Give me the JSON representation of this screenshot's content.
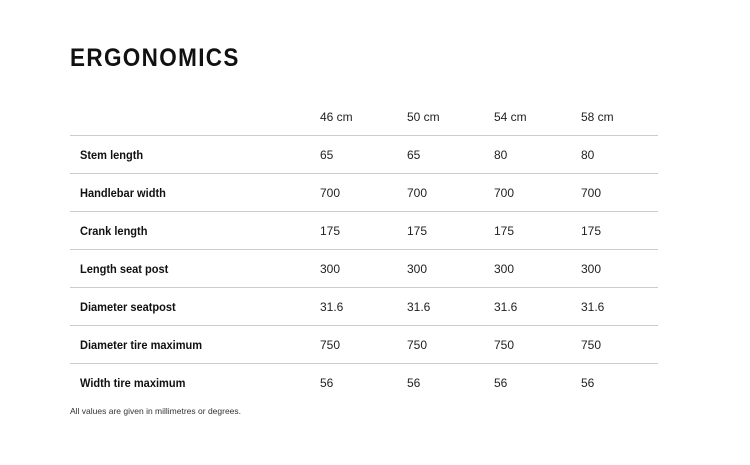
{
  "title": "ERGONOMICS",
  "table": {
    "columns": [
      "46 cm",
      "50 cm",
      "54 cm",
      "58 cm"
    ],
    "rows": [
      {
        "label": "Stem length",
        "values": [
          65,
          65,
          80,
          80
        ]
      },
      {
        "label": "Handlebar width",
        "values": [
          700,
          700,
          700,
          700
        ]
      },
      {
        "label": "Crank length",
        "values": [
          175,
          175,
          175,
          175
        ]
      },
      {
        "label": "Length seat post",
        "values": [
          300,
          300,
          300,
          300
        ]
      },
      {
        "label": "Diameter seatpost",
        "values": [
          31.6,
          31.6,
          31.6,
          31.6
        ]
      },
      {
        "label": "Diameter tire maximum",
        "values": [
          750,
          750,
          750,
          750
        ]
      },
      {
        "label": "Width tire maximum",
        "values": [
          56,
          56,
          56,
          56
        ]
      }
    ]
  },
  "footnote": "All values are given in millimetres or degrees."
}
